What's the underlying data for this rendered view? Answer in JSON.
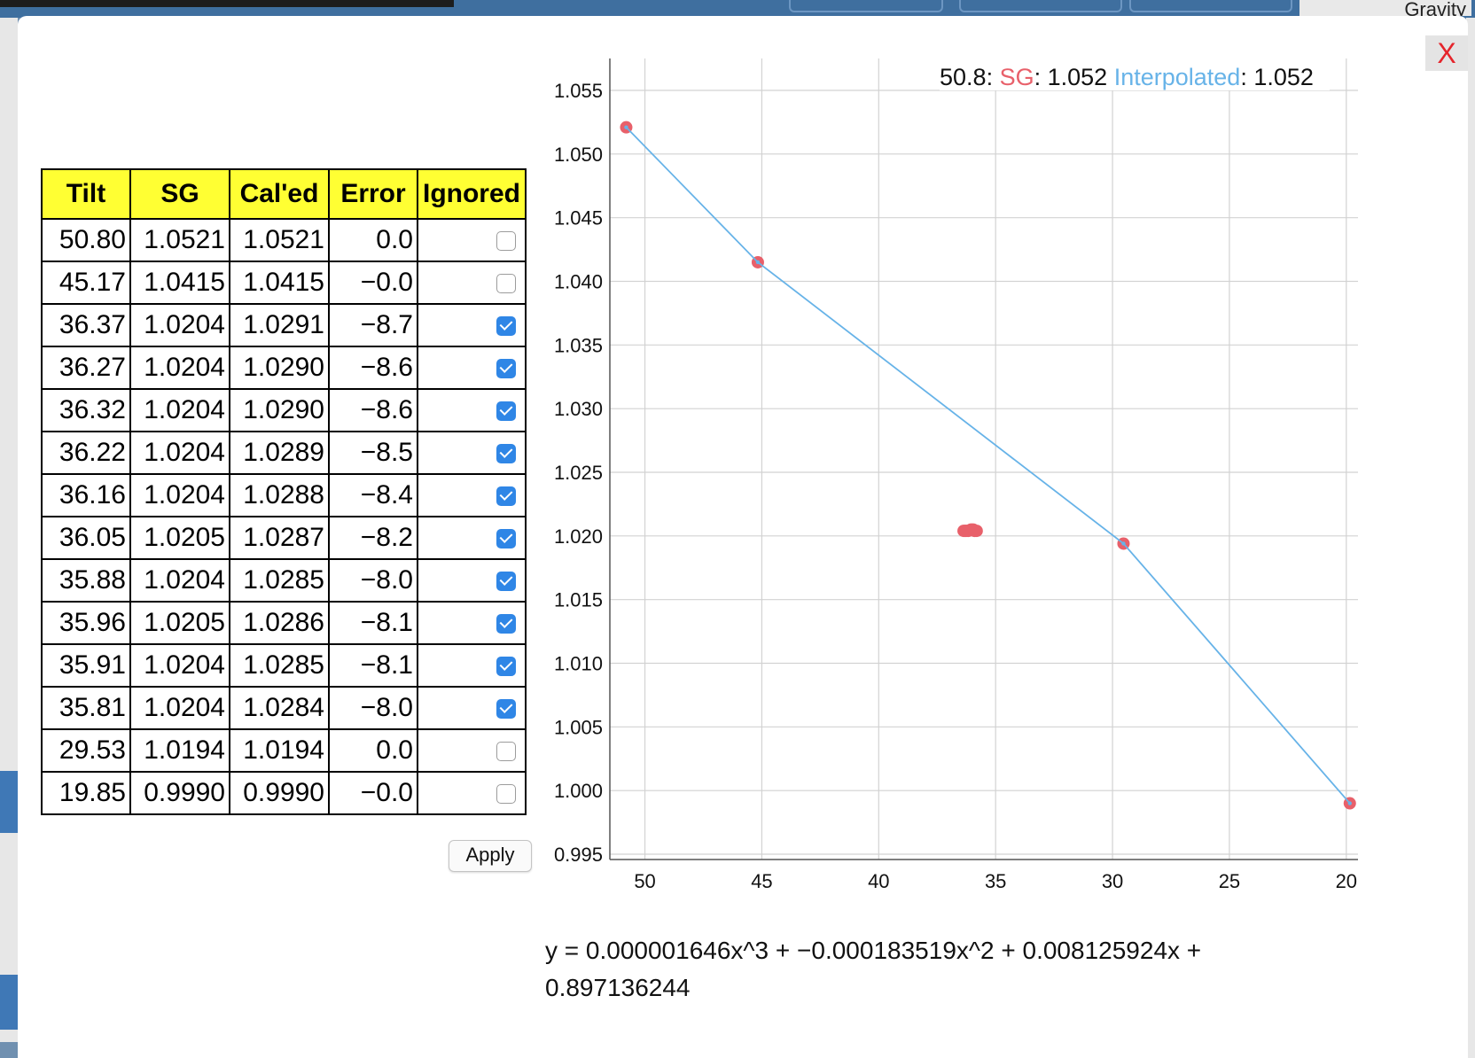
{
  "background": {
    "gravity_label": "Gravity"
  },
  "dialog": {
    "close_label": "X"
  },
  "table": {
    "headers": [
      "Tilt",
      "SG",
      "Cal'ed",
      "Error",
      "Ignored"
    ],
    "rows": [
      {
        "tilt": "50.80",
        "sg": "1.0521",
        "caled": "1.0521",
        "error": "0.0",
        "ignored": false
      },
      {
        "tilt": "45.17",
        "sg": "1.0415",
        "caled": "1.0415",
        "error": "−0.0",
        "ignored": false
      },
      {
        "tilt": "36.37",
        "sg": "1.0204",
        "caled": "1.0291",
        "error": "−8.7",
        "ignored": true
      },
      {
        "tilt": "36.27",
        "sg": "1.0204",
        "caled": "1.0290",
        "error": "−8.6",
        "ignored": true
      },
      {
        "tilt": "36.32",
        "sg": "1.0204",
        "caled": "1.0290",
        "error": "−8.6",
        "ignored": true
      },
      {
        "tilt": "36.22",
        "sg": "1.0204",
        "caled": "1.0289",
        "error": "−8.5",
        "ignored": true
      },
      {
        "tilt": "36.16",
        "sg": "1.0204",
        "caled": "1.0288",
        "error": "−8.4",
        "ignored": true
      },
      {
        "tilt": "36.05",
        "sg": "1.0205",
        "caled": "1.0287",
        "error": "−8.2",
        "ignored": true
      },
      {
        "tilt": "35.88",
        "sg": "1.0204",
        "caled": "1.0285",
        "error": "−8.0",
        "ignored": true
      },
      {
        "tilt": "35.96",
        "sg": "1.0205",
        "caled": "1.0286",
        "error": "−8.1",
        "ignored": true
      },
      {
        "tilt": "35.91",
        "sg": "1.0204",
        "caled": "1.0285",
        "error": "−8.1",
        "ignored": true
      },
      {
        "tilt": "35.81",
        "sg": "1.0204",
        "caled": "1.0284",
        "error": "−8.0",
        "ignored": true
      },
      {
        "tilt": "29.53",
        "sg": "1.0194",
        "caled": "1.0194",
        "error": "0.0",
        "ignored": false
      },
      {
        "tilt": "19.85",
        "sg": "0.9990",
        "caled": "0.9990",
        "error": "−0.0",
        "ignored": false
      }
    ],
    "apply_label": "Apply"
  },
  "tooltip": {
    "x_value": "50.8",
    "sg_label": "SG",
    "sg_value": "1.052",
    "interp_label": "Interpolated",
    "interp_value": "1.052"
  },
  "equation": "y = 0.000001646x^3 + −0.000183519x^2 + 0.008125924x + 0.897136244",
  "colors": {
    "sg_points": "#e8606a",
    "interpolated_line": "#67b3e8",
    "header_bg": "#ffff33",
    "checkbox_checked": "#2f86e6",
    "close_x": "#e5242b"
  },
  "chart_data": {
    "type": "scatter",
    "title": "",
    "xlabel": "",
    "ylabel": "",
    "xlim": [
      51.5,
      19.5
    ],
    "ylim": [
      0.995,
      1.055
    ],
    "x_reversed": true,
    "grid": true,
    "x_ticks": [
      50,
      45,
      40,
      35,
      30,
      25,
      20
    ],
    "y_ticks": [
      0.995,
      1.0,
      1.005,
      1.01,
      1.015,
      1.02,
      1.025,
      1.03,
      1.035,
      1.04,
      1.045,
      1.05,
      1.055
    ],
    "x_tick_labels": [
      "50",
      "45",
      "40",
      "35",
      "30",
      "25",
      "20"
    ],
    "y_tick_labels": [
      "0.995",
      "1.000",
      "1.005",
      "1.010",
      "1.015",
      "1.020",
      "1.025",
      "1.030",
      "1.035",
      "1.040",
      "1.045",
      "1.050",
      "1.055"
    ],
    "series": [
      {
        "name": "SG",
        "kind": "points",
        "x": [
          50.8,
          45.17,
          36.37,
          36.27,
          36.32,
          36.22,
          36.16,
          36.05,
          35.88,
          35.96,
          35.91,
          35.81,
          29.53,
          19.85
        ],
        "y": [
          1.0521,
          1.0415,
          1.0204,
          1.0204,
          1.0204,
          1.0204,
          1.0204,
          1.0205,
          1.0204,
          1.0205,
          1.0204,
          1.0204,
          1.0194,
          0.999
        ]
      },
      {
        "name": "Interpolated",
        "kind": "line",
        "x": [
          50.8,
          45.17,
          29.53,
          19.85
        ],
        "y": [
          1.0521,
          1.0415,
          1.0194,
          0.999
        ]
      }
    ]
  }
}
